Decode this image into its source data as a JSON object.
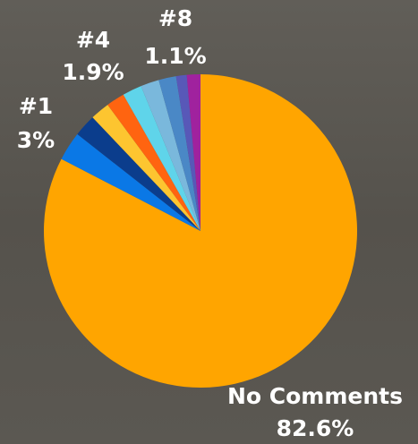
{
  "chart_data": {
    "type": "pie",
    "categories": [
      "No Comments",
      "#1",
      null,
      null,
      "#4",
      null,
      null,
      null,
      "#8",
      null
    ],
    "values": [
      82.6,
      3,
      2.3,
      2.0,
      1.9,
      2.0,
      1.9,
      1.8,
      1.1,
      1.4
    ],
    "value_labels": [
      "82.6%",
      "3%",
      null,
      null,
      "1.9%",
      null,
      null,
      null,
      "1.1%",
      null
    ],
    "colors": [
      "#ffa500",
      "#0a78e6",
      "#0b3d8c",
      "#fdc530",
      "#ff6410",
      "#5fd4ea",
      "#7ab8dc",
      "#4a88c6",
      "#5858b8",
      "#a0229e"
    ]
  }
}
